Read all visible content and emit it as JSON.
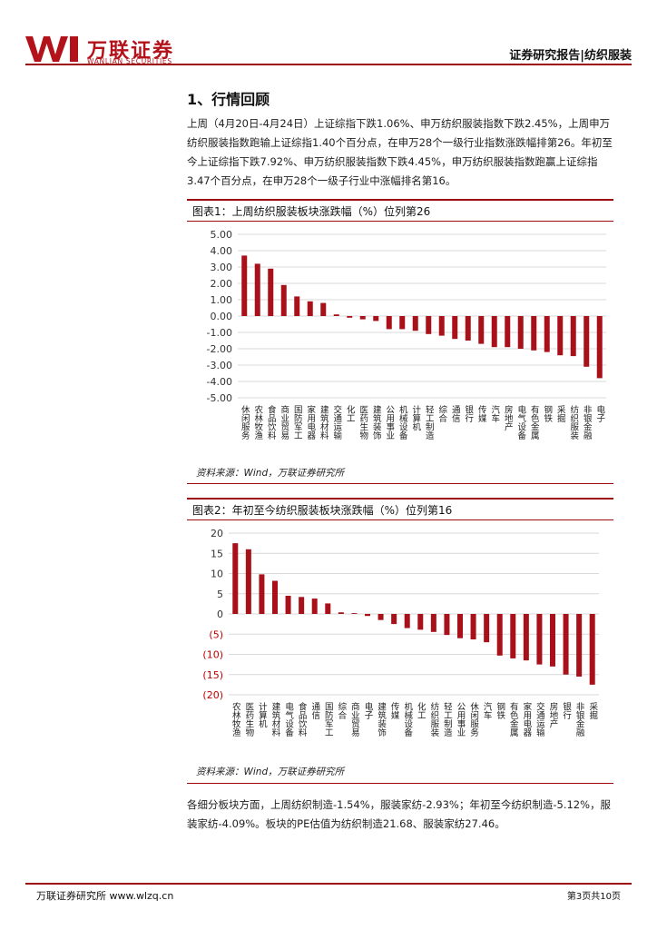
{
  "header": {
    "logo_cn": "万联证券",
    "logo_en": "WANLIAN SECURITIES",
    "right_text": "证券研究报告|纺织服装"
  },
  "section": {
    "title": "1、行情回顾",
    "paragraph1": "上周（4月20日-4月24日）上证综指下跌1.06%、申万纺织服装指数下跌2.45%，上周申万纺织服装指数跑输上证综指1.40个百分点，在申万28个一级行业指数涨跌幅排第26。年初至今上证综指下跌7.92%、申万纺织服装指数下跌4.45%，申万纺织服装指数跑赢上证综指3.47个百分点，在申万28个一级子行业中涨幅排名第16。",
    "paragraph2": "各细分板块方面，上周纺织制造-1.54%，服装家纺-2.93%；年初至今纺织制造-5.12%，服装家纺-4.09%。板块的PE估值为纺织制造21.68、服装家纺27.46。"
  },
  "figure1": {
    "title": "图表1：上周纺织服装板块涨跌幅（%）位列第26",
    "source": "资料来源：Wind，万联证券研究所"
  },
  "figure2": {
    "title": "图表2：年初至今纺织服装板块涨跌幅（%）位列第16",
    "source": "资料来源：Wind，万联证券研究所"
  },
  "footer": {
    "left": "万联证券研究所 www.wlzq.cn",
    "right": "第3页共10页"
  },
  "colors": {
    "brand": "#9c0a10",
    "bar": "#a8101a"
  },
  "chart_data": [
    {
      "type": "bar",
      "categories": [
        "休闲服务",
        "农林牧渔",
        "食品饮料",
        "商业贸易",
        "国防军工",
        "家用电器",
        "建筑材料",
        "交通运输",
        "化工",
        "医药生物",
        "建筑装饰",
        "公用事业",
        "机械设备",
        "计算机",
        "轻工制造",
        "综合",
        "通信",
        "银行",
        "传媒",
        "汽车",
        "房地产",
        "电气设备",
        "有色金属",
        "钢铁",
        "采掘",
        "纺织服装",
        "非银金融",
        "电子"
      ],
      "values": [
        3.7,
        3.2,
        2.9,
        1.9,
        1.2,
        0.9,
        0.8,
        0.1,
        -0.1,
        -0.2,
        -0.3,
        -0.8,
        -0.8,
        -0.9,
        -1.1,
        -1.2,
        -1.4,
        -1.5,
        -1.7,
        -1.9,
        -1.9,
        -2.0,
        -2.1,
        -2.2,
        -2.4,
        -2.45,
        -3.1,
        -3.8
      ],
      "ylim": [
        -5,
        5
      ],
      "ytick_labels": [
        "5.00",
        "4.00",
        "3.00",
        "2.00",
        "1.00",
        "0.00",
        "-1.00",
        "-2.00",
        "-3.00",
        "-4.00",
        "-5.00"
      ],
      "grid": true
    },
    {
      "type": "bar",
      "categories": [
        "农林牧渔",
        "医药生物",
        "计算机",
        "建筑材料",
        "电气设备",
        "食品饮料",
        "通信",
        "国防军工",
        "综合",
        "商业贸易",
        "电子",
        "建筑装饰",
        "传媒",
        "机械设备",
        "化工",
        "纺织服装",
        "轻工制造",
        "公用事业",
        "休闲服务",
        "汽车",
        "钢铁",
        "有色金属",
        "家用电器",
        "交通运输",
        "房地产",
        "银行",
        "非银金融",
        "采掘"
      ],
      "values": [
        17.5,
        16.0,
        9.8,
        8.2,
        4.5,
        4.2,
        3.8,
        2.6,
        0.4,
        0.2,
        -0.5,
        -1.5,
        -2.5,
        -3.5,
        -3.9,
        -4.45,
        -5.2,
        -6.0,
        -6.3,
        -7.0,
        -10.3,
        -11.0,
        -11.5,
        -12.5,
        -13.0,
        -15.0,
        -15.5,
        -17.5
      ],
      "ylim": [
        -20,
        20
      ],
      "ytick_labels": [
        "20",
        "15",
        "10",
        "5",
        "0",
        "(5)",
        "(10)",
        "(15)",
        "(20)"
      ],
      "grid": true
    }
  ]
}
